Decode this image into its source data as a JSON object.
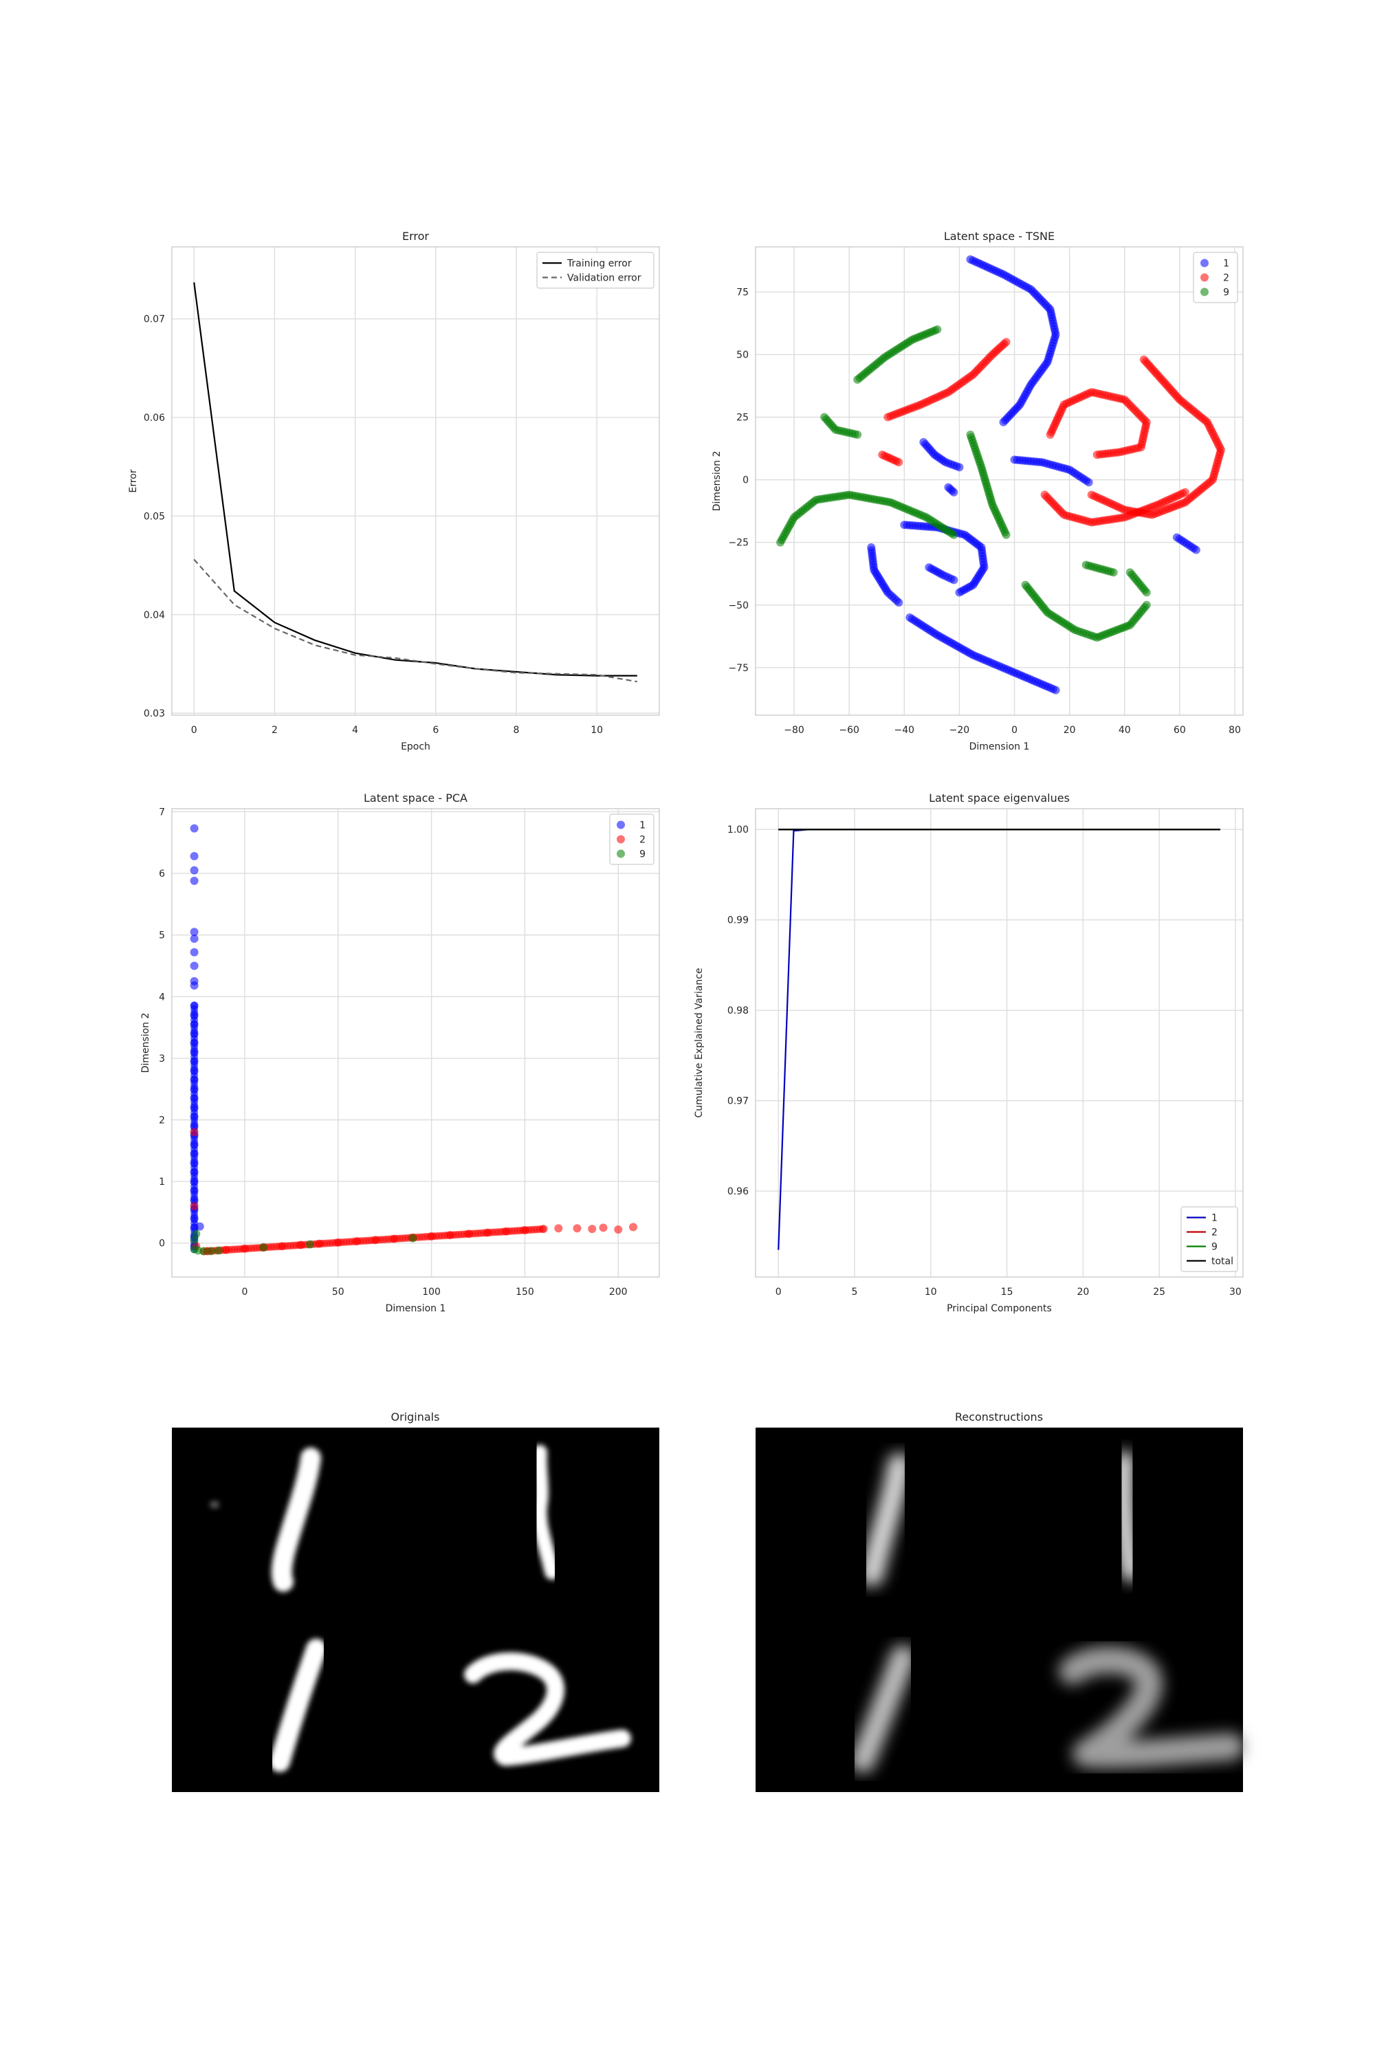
{
  "chart_data": [
    {
      "id": "error",
      "type": "line",
      "title": "Error",
      "xlabel": "Epoch",
      "ylabel": "Error",
      "xlim": [
        -0.55,
        11.55
      ],
      "ylim": [
        0.0298,
        0.0773
      ],
      "xticks": [
        0,
        2,
        4,
        6,
        8,
        10
      ],
      "xticklabels": [
        "0",
        "2",
        "4",
        "6",
        "8",
        "10"
      ],
      "yticks": [
        0.03,
        0.04,
        0.05,
        0.06,
        0.07
      ],
      "yticklabels": [
        "0.03",
        "0.04",
        "0.05",
        "0.06",
        "0.07"
      ],
      "grid": true,
      "legend": "top-right",
      "series": [
        {
          "name": "Training error",
          "color": "#000000",
          "dash": "solid",
          "x": [
            0,
            1,
            2,
            3,
            4,
            5,
            6,
            7,
            8,
            9,
            10,
            11
          ],
          "y": [
            0.0737,
            0.0424,
            0.0392,
            0.0374,
            0.0361,
            0.0354,
            0.0351,
            0.0345,
            0.0342,
            0.0339,
            0.0338,
            0.0338
          ]
        },
        {
          "name": "Validation error",
          "color": "#666666",
          "dash": "dashed",
          "x": [
            0,
            1,
            2,
            3,
            4,
            5,
            6,
            7,
            8,
            9,
            10,
            11
          ],
          "y": [
            0.0456,
            0.041,
            0.0386,
            0.0369,
            0.0359,
            0.0356,
            0.035,
            0.0345,
            0.0341,
            0.034,
            0.0339,
            0.0332
          ]
        }
      ]
    },
    {
      "id": "tsne",
      "type": "scatter",
      "title": "Latent space - TSNE",
      "xlabel": "Dimension 1",
      "ylabel": "Dimension 2",
      "xlim": [
        -94,
        83
      ],
      "ylim": [
        -94,
        93
      ],
      "xticks": [
        -80,
        -60,
        -40,
        -20,
        0,
        20,
        40,
        60,
        80
      ],
      "xticklabels": [
        "−80",
        "−60",
        "−40",
        "−20",
        "0",
        "20",
        "40",
        "60",
        "80"
      ],
      "yticks": [
        -75,
        -50,
        -25,
        0,
        25,
        50,
        75
      ],
      "yticklabels": [
        "−75",
        "−50",
        "−25",
        "0",
        "25",
        "50",
        "75"
      ],
      "grid": true,
      "legend": "top-right",
      "series": [
        {
          "name": "1",
          "color": "#0000ff",
          "curves": [
            [
              [
                -16,
                88
              ],
              [
                -4,
                82
              ],
              [
                6,
                76
              ],
              [
                13,
                68
              ],
              [
                15,
                58
              ],
              [
                12,
                47
              ],
              [
                6,
                38
              ],
              [
                2,
                30
              ],
              [
                -4,
                23
              ]
            ],
            [
              [
                -33,
                15
              ],
              [
                -29,
                10
              ],
              [
                -25,
                7
              ],
              [
                -20,
                5
              ]
            ],
            [
              [
                0,
                8
              ],
              [
                10,
                7
              ],
              [
                20,
                4
              ],
              [
                27,
                -1
              ]
            ],
            [
              [
                -24,
                -3
              ],
              [
                -22,
                -5
              ]
            ],
            [
              [
                -40,
                -18
              ],
              [
                -28,
                -19
              ],
              [
                -18,
                -22
              ],
              [
                -12,
                -27
              ],
              [
                -11,
                -35
              ],
              [
                -15,
                -42
              ],
              [
                -20,
                -45
              ]
            ],
            [
              [
                -52,
                -27
              ],
              [
                -51,
                -36
              ],
              [
                -46,
                -45
              ],
              [
                -42,
                -49
              ]
            ],
            [
              [
                -38,
                -55
              ],
              [
                -28,
                -62
              ],
              [
                -15,
                -70
              ],
              [
                0,
                -77
              ],
              [
                15,
                -84
              ]
            ],
            [
              [
                59,
                -23
              ],
              [
                66,
                -28
              ]
            ],
            [
              [
                -31,
                -35
              ],
              [
                -26,
                -38
              ],
              [
                -22,
                -40
              ]
            ]
          ]
        },
        {
          "name": "2",
          "color": "#ff0000",
          "curves": [
            [
              [
                -46,
                25
              ],
              [
                -34,
                30
              ],
              [
                -24,
                35
              ],
              [
                -15,
                42
              ],
              [
                -8,
                50
              ],
              [
                -3,
                55
              ]
            ],
            [
              [
                -48,
                10
              ],
              [
                -42,
                7
              ]
            ],
            [
              [
                28,
                -6
              ],
              [
                40,
                -12
              ],
              [
                50,
                -14
              ],
              [
                62,
                -9
              ],
              [
                72,
                0
              ],
              [
                75,
                12
              ],
              [
                70,
                23
              ],
              [
                60,
                32
              ],
              [
                47,
                48
              ]
            ],
            [
              [
                13,
                18
              ],
              [
                18,
                30
              ],
              [
                28,
                35
              ],
              [
                40,
                32
              ],
              [
                48,
                23
              ],
              [
                46,
                13
              ],
              [
                38,
                11
              ],
              [
                30,
                10
              ]
            ],
            [
              [
                11,
                -6
              ],
              [
                18,
                -14
              ],
              [
                28,
                -17
              ],
              [
                40,
                -15
              ],
              [
                52,
                -10
              ],
              [
                62,
                -5
              ]
            ]
          ]
        },
        {
          "name": "9",
          "color": "#008000",
          "curves": [
            [
              [
                -57,
                40
              ],
              [
                -47,
                49
              ],
              [
                -37,
                56
              ],
              [
                -28,
                60
              ]
            ],
            [
              [
                -69,
                25
              ],
              [
                -65,
                20
              ],
              [
                -57,
                18
              ]
            ],
            [
              [
                -85,
                -25
              ],
              [
                -80,
                -15
              ],
              [
                -72,
                -8
              ],
              [
                -60,
                -6
              ],
              [
                -45,
                -9
              ],
              [
                -32,
                -15
              ],
              [
                -22,
                -22
              ]
            ],
            [
              [
                -16,
                18
              ],
              [
                -12,
                5
              ],
              [
                -8,
                -10
              ],
              [
                -3,
                -22
              ]
            ],
            [
              [
                4,
                -42
              ],
              [
                12,
                -53
              ],
              [
                22,
                -60
              ],
              [
                30,
                -63
              ],
              [
                42,
                -58
              ],
              [
                48,
                -50
              ]
            ],
            [
              [
                26,
                -34
              ],
              [
                36,
                -37
              ]
            ],
            [
              [
                42,
                -37
              ],
              [
                48,
                -45
              ]
            ]
          ]
        }
      ]
    },
    {
      "id": "pca",
      "type": "scatter",
      "title": "Latent space - PCA",
      "xlabel": "Dimension 1",
      "ylabel": "Dimension 2",
      "xlim": [
        -39,
        222
      ],
      "ylim": [
        -0.55,
        7.05
      ],
      "xticks": [
        0,
        50,
        100,
        150,
        200
      ],
      "xticklabels": [
        "0",
        "50",
        "100",
        "150",
        "200"
      ],
      "yticks": [
        0,
        1,
        2,
        3,
        4,
        5,
        6,
        7
      ],
      "yticklabels": [
        "0",
        "1",
        "2",
        "3",
        "4",
        "5",
        "6",
        "7"
      ],
      "grid": true,
      "legend": "top-right",
      "series": [
        {
          "name": "1",
          "color": "#0000ff",
          "points": [
            [
              -27,
              6.73
            ],
            [
              -27,
              6.28
            ],
            [
              -27,
              6.05
            ],
            [
              -27,
              5.88
            ],
            [
              -27,
              5.05
            ],
            [
              -27,
              4.94
            ],
            [
              -27,
              4.72
            ],
            [
              -27,
              4.5
            ],
            [
              -27,
              4.25
            ],
            [
              -27,
              4.18
            ],
            [
              -27,
              3.85
            ],
            [
              -27,
              3.7
            ],
            [
              -27,
              3.55
            ],
            [
              -27,
              3.4
            ],
            [
              -27,
              3.25
            ],
            [
              -27,
              3.1
            ],
            [
              -27,
              2.95
            ],
            [
              -27,
              2.8
            ],
            [
              -27,
              2.65
            ],
            [
              -27,
              2.5
            ],
            [
              -27,
              2.35
            ],
            [
              -27,
              2.2
            ],
            [
              -27,
              2.05
            ],
            [
              -27,
              1.9
            ],
            [
              -27,
              1.75
            ],
            [
              -27,
              1.6
            ],
            [
              -27,
              1.45
            ],
            [
              -27,
              1.3
            ],
            [
              -27,
              1.15
            ],
            [
              -27,
              1.0
            ],
            [
              -27,
              0.85
            ],
            [
              -27,
              0.7
            ],
            [
              -27,
              0.55
            ],
            [
              -27,
              0.4
            ],
            [
              -27,
              0.25
            ],
            [
              -27,
              0.1
            ],
            [
              -24,
              0.27
            ],
            [
              -27,
              -0.05
            ]
          ]
        },
        {
          "name": "2",
          "color": "#ff0000",
          "points": [
            [
              -20,
              -0.13
            ],
            [
              -10,
              -0.11
            ],
            [
              0,
              -0.09
            ],
            [
              10,
              -0.07
            ],
            [
              20,
              -0.05
            ],
            [
              30,
              -0.03
            ],
            [
              40,
              -0.01
            ],
            [
              50,
              0.01
            ],
            [
              60,
              0.03
            ],
            [
              70,
              0.05
            ],
            [
              80,
              0.07
            ],
            [
              90,
              0.09
            ],
            [
              100,
              0.11
            ],
            [
              110,
              0.13
            ],
            [
              120,
              0.15
            ],
            [
              130,
              0.17
            ],
            [
              140,
              0.19
            ],
            [
              150,
              0.21
            ],
            [
              160,
              0.23
            ],
            [
              168,
              0.24
            ],
            [
              178,
              0.24
            ],
            [
              186,
              0.23
            ],
            [
              192,
              0.25
            ],
            [
              200,
              0.22
            ],
            [
              208,
              0.26
            ],
            [
              -27,
              1.8
            ],
            [
              -27,
              0.6
            ],
            [
              -26,
              -0.05
            ]
          ]
        },
        {
          "name": "9",
          "color": "#008000",
          "points": [
            [
              -27,
              -0.1
            ],
            [
              -25,
              -0.12
            ],
            [
              -22,
              -0.13
            ],
            [
              -18,
              -0.13
            ],
            [
              -14,
              -0.12
            ],
            [
              -27,
              0.05
            ],
            [
              -26,
              0.15
            ],
            [
              10,
              -0.07
            ],
            [
              35,
              -0.02
            ],
            [
              90,
              0.08
            ]
          ]
        }
      ]
    },
    {
      "id": "eigenvalues",
      "type": "line",
      "title": "Latent space eigenvalues",
      "xlabel": "Principal Components",
      "ylabel": "Cumulative Explained Variance",
      "xlim": [
        -1.5,
        30.5
      ],
      "ylim": [
        0.9505,
        1.0023
      ],
      "xticks": [
        0,
        5,
        10,
        15,
        20,
        25,
        30
      ],
      "xticklabels": [
        "0",
        "5",
        "10",
        "15",
        "20",
        "25",
        "30"
      ],
      "yticks": [
        0.96,
        0.97,
        0.98,
        0.99,
        1.0
      ],
      "yticklabels": [
        "0.96",
        "0.97",
        "0.98",
        "0.99",
        "1.00"
      ],
      "grid": true,
      "legend": "bottom-right",
      "series": [
        {
          "name": "1",
          "color": "#0000bf",
          "x": [
            0,
            1,
            2,
            3,
            29
          ],
          "y": [
            0.9535,
            0.99985,
            1.0,
            1.0,
            1.0
          ]
        },
        {
          "name": "2",
          "color": "#bf0000",
          "x": [
            0,
            1,
            2,
            29
          ],
          "y": [
            1.0,
            1.0,
            1.0,
            1.0
          ]
        },
        {
          "name": "9",
          "color": "#008000",
          "x": [
            0,
            1,
            2,
            29
          ],
          "y": [
            1.0,
            1.0,
            1.0,
            1.0
          ]
        },
        {
          "name": "total",
          "color": "#000000",
          "x": [
            0,
            1,
            2,
            3,
            29
          ],
          "y": [
            1.0,
            1.0,
            1.0,
            1.0,
            1.0
          ]
        }
      ]
    }
  ],
  "images": {
    "originals_title": "Originals",
    "reconstructions_title": "Reconstructions"
  }
}
